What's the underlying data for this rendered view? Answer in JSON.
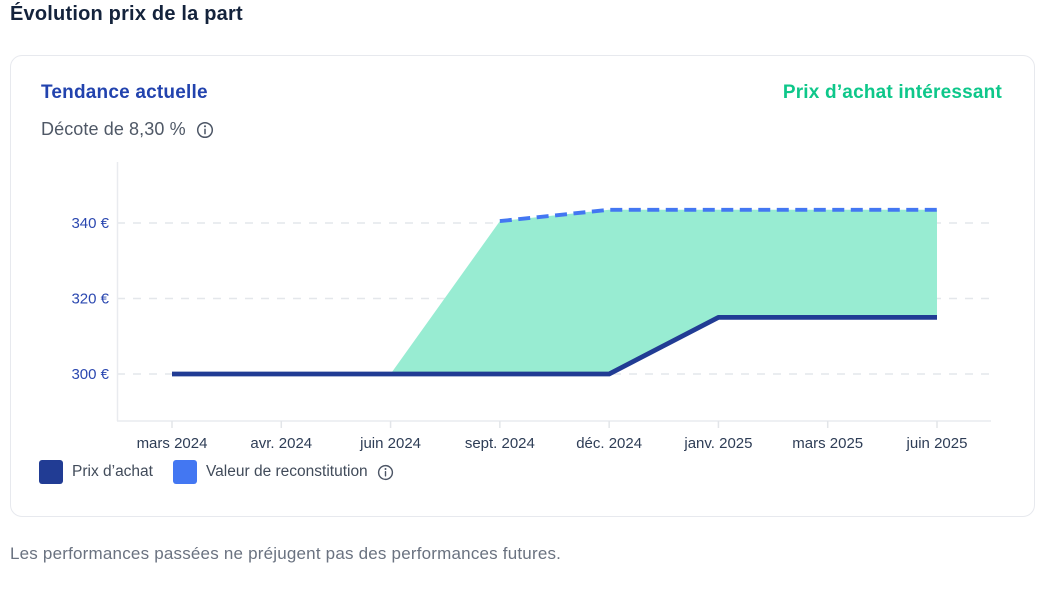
{
  "page": {
    "title": "Évolution prix de la part",
    "footer": "Les performances passées ne préjugent pas des performances futures."
  },
  "card": {
    "trend_label": "Tendance actuelle",
    "price_signal": "Prix d’achat intéressant",
    "discount_text": "Décote de 8,30 %",
    "colors": {
      "trend": "#2243ae",
      "signal": "#0ec78a"
    },
    "icons": {
      "discount_info": "info-icon",
      "reconstitution_info": "info-icon"
    }
  },
  "legend": {
    "items": [
      {
        "label": "Prix d’achat",
        "info_icon": false
      },
      {
        "label": "Valeur de reconstitution",
        "info_icon": true
      }
    ]
  },
  "chart_data": {
    "type": "area",
    "title": "Évolution prix de la part",
    "categories": [
      "mars 2024",
      "avr. 2024",
      "juin 2024",
      "sept. 2024",
      "déc. 2024",
      "janv. 2025",
      "mars 2025",
      "juin 2025"
    ],
    "series": [
      {
        "name": "Prix d’achat",
        "values": [
          300,
          300,
          300,
          300,
          300,
          315,
          315,
          315
        ],
        "style": "solid",
        "color": "#213c94"
      },
      {
        "name": "Valeur de reconstitution",
        "values": [
          300,
          300,
          300,
          340.5,
          343.5,
          343.5,
          343.5,
          343.5
        ],
        "style": "dashed",
        "color": "#4377f2",
        "dashed_from_category": "sept. 2024"
      }
    ],
    "fill_between_color": "#98ecd2",
    "y_ticks": [
      {
        "value": 300,
        "label": "300 €"
      },
      {
        "value": 320,
        "label": "320 €"
      },
      {
        "value": 340,
        "label": "340 €"
      }
    ],
    "ylim": [
      288,
      352
    ],
    "grid": "horizontal-dashed",
    "legend_position": "bottom-left",
    "axis_label_colors": {
      "y": "#2b48b0",
      "x": "#2e3d56"
    }
  }
}
